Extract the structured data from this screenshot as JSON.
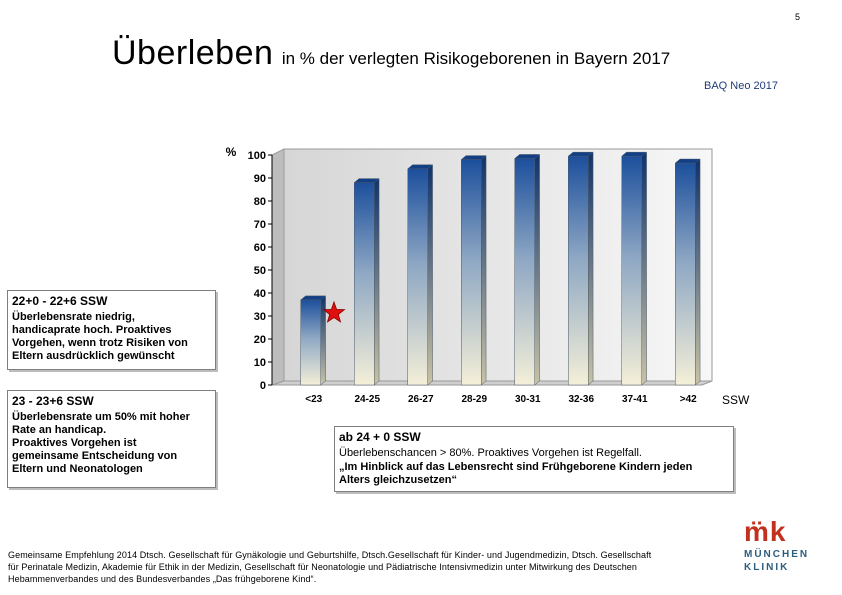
{
  "page_number": "5",
  "title": {
    "main": "Überleben",
    "sub": "in % der verlegten Risikogeborenen in Bayern 2017"
  },
  "source_note": "BAQ Neo 2017",
  "chart_data": {
    "type": "bar",
    "ylabel": "%",
    "xlabel": "SSW",
    "ylim": [
      0,
      100
    ],
    "yticks": [
      0,
      10,
      20,
      30,
      40,
      50,
      60,
      70,
      80,
      90,
      100
    ],
    "categories": [
      "<23",
      "24-25",
      "26-27",
      "28-29",
      "30-31",
      "32-36",
      "37-41",
      ">42"
    ],
    "values": [
      37,
      88,
      94,
      98,
      98.5,
      99.5,
      99.5,
      96.5
    ],
    "grid": false,
    "colors": {
      "bar_top": "#1c4f9c",
      "bar_bottom": "#f4efd8",
      "marker": "#e01010"
    },
    "marker": {
      "shape": "star",
      "near_category": "<23"
    }
  },
  "boxes": [
    {
      "head": "22+0 - 22+6 SSW",
      "body": [
        "Überlebensrate niedrig,",
        "handicaprate hoch. Proaktives",
        "Vorgehen, wenn trotz Risiken von",
        "Eltern ausdrücklich gewünscht"
      ]
    },
    {
      "head": "23 - 23+6 SSW",
      "body": [
        "Überlebensrate um 50% mit hoher",
        "Rate an handicap.",
        "Proaktives Vorgehen  ist",
        "gemeinsame Entscheidung von",
        "Eltern und Neonatologen"
      ]
    },
    {
      "head": "ab 24 + 0 SSW",
      "body_line1": "Überlebenschancen > 80%. Proaktives Vorgehen ist Regelfall.",
      "body_bold": [
        "„Im Hinblick auf das Lebensrecht  sind Frühgeborene Kindern jeden",
        "Alters gleichzusetzen“"
      ]
    }
  ],
  "footer": [
    "Gemeinsame Empfehlung  2014  Dtsch. Gesellschaft für Gynäkologie und Geburtshilfe,  Dtsch.Gesellschaft für Kinder- und Jugendmedizin, Dtsch. Gesellschaft",
    "für Perinatale Medizin, Akademie für Ethik in der Medizin,  Gesellschaft für Neonatologie und Pädiatrische Intensivmedizin  unter Mitwirkung des Deutschen",
    "Hebammenverbandes und des Bundesverbandes „Das frühgeborene Kind“."
  ],
  "logo": {
    "mark": "m̈k",
    "line1": "MÜNCHEN",
    "line2": "KLINIK"
  }
}
